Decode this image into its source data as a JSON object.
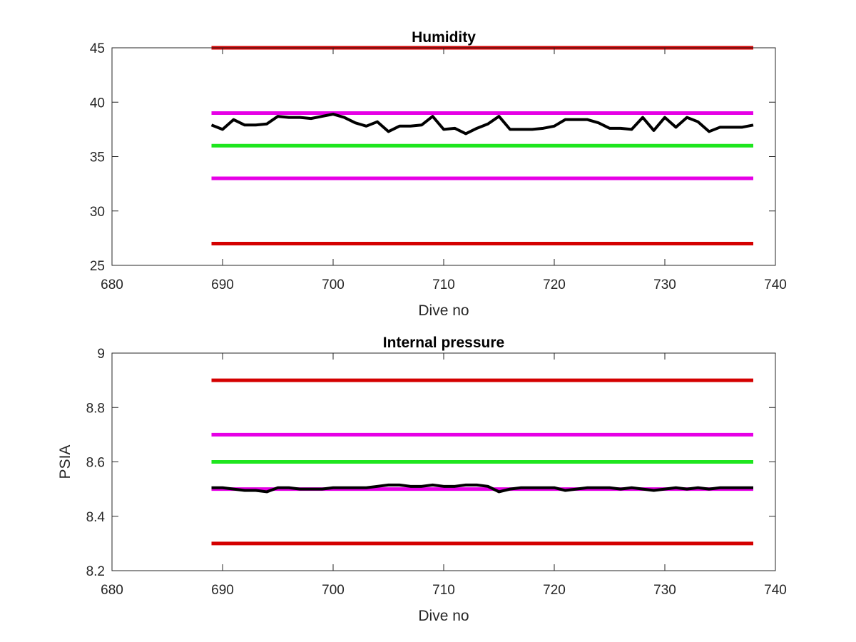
{
  "chart_data": [
    {
      "type": "line",
      "title": "Humidity",
      "xlabel": "Dive no",
      "ylabel": "",
      "xlim": [
        680,
        740
      ],
      "ylim": [
        25,
        45
      ],
      "xticks": [
        680,
        690,
        700,
        710,
        720,
        730,
        740
      ],
      "yticks": [
        25,
        30,
        35,
        40,
        45
      ],
      "grid": false,
      "reference_lines": [
        {
          "y": 45,
          "x_range": [
            689,
            738
          ],
          "color": "#d40000"
        },
        {
          "y": 39,
          "x_range": [
            689,
            738
          ],
          "color": "#e600e6"
        },
        {
          "y": 36,
          "x_range": [
            689,
            738
          ],
          "color": "#1ee61e"
        },
        {
          "y": 33,
          "x_range": [
            689,
            738
          ],
          "color": "#e600e6"
        },
        {
          "y": 27,
          "x_range": [
            689,
            738
          ],
          "color": "#d40000"
        }
      ],
      "series": [
        {
          "color": "#000000",
          "x": [
            689,
            690,
            691,
            692,
            693,
            694,
            695,
            696,
            697,
            698,
            699,
            700,
            701,
            702,
            703,
            704,
            705,
            706,
            707,
            708,
            709,
            710,
            711,
            712,
            713,
            714,
            715,
            716,
            717,
            718,
            719,
            720,
            721,
            722,
            723,
            724,
            725,
            726,
            727,
            728,
            729,
            730,
            731,
            732,
            733,
            734,
            735,
            736,
            737,
            738
          ],
          "values": [
            37.9,
            37.5,
            38.4,
            37.9,
            37.9,
            38.0,
            38.7,
            38.6,
            38.6,
            38.5,
            38.7,
            38.9,
            38.6,
            38.1,
            37.8,
            38.2,
            37.3,
            37.8,
            37.8,
            37.9,
            38.7,
            37.5,
            37.6,
            37.1,
            37.6,
            38.0,
            38.7,
            37.5,
            37.5,
            37.5,
            37.6,
            37.8,
            38.4,
            38.4,
            38.4,
            38.1,
            37.6,
            37.6,
            37.5,
            38.6,
            37.4,
            38.6,
            37.7,
            38.6,
            38.2,
            37.3,
            37.7,
            37.7,
            37.7,
            37.9
          ]
        }
      ]
    },
    {
      "type": "line",
      "title": "Internal pressure",
      "xlabel": "Dive no",
      "ylabel": "PSIA",
      "xlim": [
        680,
        740
      ],
      "ylim": [
        8.2,
        9
      ],
      "xticks": [
        680,
        690,
        700,
        710,
        720,
        730,
        740
      ],
      "yticks": [
        8.2,
        8.4,
        8.6,
        8.8,
        9
      ],
      "grid": false,
      "reference_lines": [
        {
          "y": 8.9,
          "x_range": [
            689,
            738
          ],
          "color": "#d40000"
        },
        {
          "y": 8.7,
          "x_range": [
            689,
            738
          ],
          "color": "#e600e6"
        },
        {
          "y": 8.6,
          "x_range": [
            689,
            738
          ],
          "color": "#1ee61e"
        },
        {
          "y": 8.5,
          "x_range": [
            689,
            738
          ],
          "color": "#e600e6"
        },
        {
          "y": 8.3,
          "x_range": [
            689,
            738
          ],
          "color": "#d40000"
        }
      ],
      "series": [
        {
          "color": "#000000",
          "x": [
            689,
            690,
            691,
            692,
            693,
            694,
            695,
            696,
            697,
            698,
            699,
            700,
            701,
            702,
            703,
            704,
            705,
            706,
            707,
            708,
            709,
            710,
            711,
            712,
            713,
            714,
            715,
            716,
            717,
            718,
            719,
            720,
            721,
            722,
            723,
            724,
            725,
            726,
            727,
            728,
            729,
            730,
            731,
            732,
            733,
            734,
            735,
            736,
            737,
            738
          ],
          "values": [
            8.505,
            8.505,
            8.5,
            8.495,
            8.495,
            8.49,
            8.505,
            8.505,
            8.5,
            8.5,
            8.5,
            8.505,
            8.505,
            8.505,
            8.505,
            8.51,
            8.515,
            8.515,
            8.51,
            8.51,
            8.515,
            8.51,
            8.51,
            8.515,
            8.515,
            8.51,
            8.49,
            8.5,
            8.505,
            8.505,
            8.505,
            8.505,
            8.495,
            8.5,
            8.505,
            8.505,
            8.505,
            8.5,
            8.505,
            8.5,
            8.495,
            8.5,
            8.505,
            8.5,
            8.505,
            8.5,
            8.505,
            8.505,
            8.505,
            8.505
          ]
        }
      ]
    }
  ]
}
